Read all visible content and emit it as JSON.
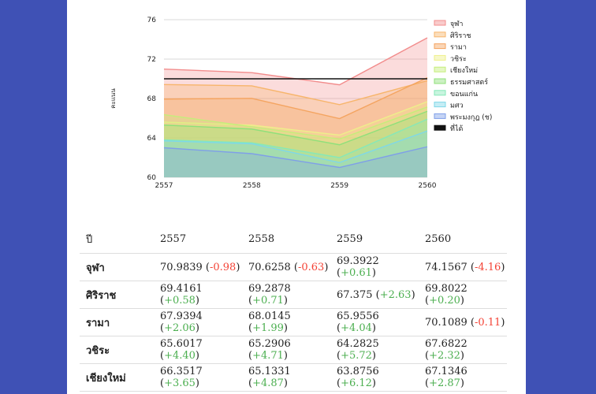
{
  "chart_data": {
    "type": "area",
    "x": [
      "2557",
      "2558",
      "2559",
      "2560"
    ],
    "ylim": [
      60,
      76
    ],
    "yticks": [
      60,
      64,
      68,
      72,
      76
    ],
    "ylabel": "คะแนน",
    "legend_position": "right",
    "series": [
      {
        "name": "จุฬา",
        "color": "#f28c8c",
        "values": [
          70.9839,
          70.6258,
          69.3922,
          74.1567
        ]
      },
      {
        "name": "ศิริราช",
        "color": "#f7b56b",
        "values": [
          69.4161,
          69.2878,
          67.375,
          69.8022
        ]
      },
      {
        "name": "รามา",
        "color": "#f4a460",
        "values": [
          67.9394,
          68.0145,
          65.9556,
          70.1089
        ]
      },
      {
        "name": "วชิระ",
        "color": "#eef08a",
        "values": [
          65.6017,
          65.2906,
          64.2825,
          67.6822
        ]
      },
      {
        "name": "เชียงใหม่",
        "color": "#c5ee7a",
        "values": [
          66.3517,
          65.1331,
          63.8756,
          67.1346
        ]
      },
      {
        "name": "ธรรมศาสตร์",
        "color": "#8fe07a",
        "values": [
          65.3,
          64.9,
          63.3,
          66.7
        ]
      },
      {
        "name": "ขอนแก่น",
        "color": "#86e8b8",
        "values": [
          63.8,
          63.5,
          62.0,
          65.9
        ]
      },
      {
        "name": "มศว",
        "color": "#7fd8e8",
        "values": [
          63.7,
          63.4,
          61.5,
          64.7
        ]
      },
      {
        "name": "พระมงกุฎ (ช)",
        "color": "#7f9fe8",
        "values": [
          63.0,
          62.4,
          61.0,
          63.1
        ]
      },
      {
        "name": "ที่ได้",
        "color": "#111111",
        "values": [
          70,
          70,
          70,
          70
        ]
      }
    ]
  },
  "table": {
    "header_label": "ปี",
    "years": [
      "2557",
      "2558",
      "2559",
      "2560"
    ],
    "rows": [
      {
        "name": "จุฬา",
        "cells": [
          {
            "value": "70.9839",
            "diff": "-0.98",
            "sign": "neg"
          },
          {
            "value": "70.6258",
            "diff": "-0.63",
            "sign": "neg"
          },
          {
            "value": "69.3922",
            "diff": "+0.61",
            "sign": "pos"
          },
          {
            "value": "74.1567",
            "diff": "-4.16",
            "sign": "neg"
          }
        ]
      },
      {
        "name": "ศิริราช",
        "cells": [
          {
            "value": "69.4161",
            "diff": "+0.58",
            "sign": "pos"
          },
          {
            "value": "69.2878",
            "diff": "+0.71",
            "sign": "pos"
          },
          {
            "value": "67.375",
            "diff": "+2.63",
            "sign": "pos"
          },
          {
            "value": "69.8022",
            "diff": "+0.20",
            "sign": "pos"
          }
        ]
      },
      {
        "name": "รามา",
        "cells": [
          {
            "value": "67.9394",
            "diff": "+2.06",
            "sign": "pos"
          },
          {
            "value": "68.0145",
            "diff": "+1.99",
            "sign": "pos"
          },
          {
            "value": "65.9556",
            "diff": "+4.04",
            "sign": "pos"
          },
          {
            "value": "70.1089",
            "diff": "-0.11",
            "sign": "neg"
          }
        ]
      },
      {
        "name": "วชิระ",
        "cells": [
          {
            "value": "65.6017",
            "diff": "+4.40",
            "sign": "pos"
          },
          {
            "value": "65.2906",
            "diff": "+4.71",
            "sign": "pos"
          },
          {
            "value": "64.2825",
            "diff": "+5.72",
            "sign": "pos"
          },
          {
            "value": "67.6822",
            "diff": "+2.32",
            "sign": "pos"
          }
        ]
      },
      {
        "name": "เชียงใหม่",
        "cells": [
          {
            "value": "66.3517",
            "diff": "+3.65",
            "sign": "pos"
          },
          {
            "value": "65.1331",
            "diff": "+4.87",
            "sign": "pos"
          },
          {
            "value": "63.8756",
            "diff": "+6.12",
            "sign": "pos"
          },
          {
            "value": "67.1346",
            "diff": "+2.87",
            "sign": "pos"
          }
        ]
      }
    ]
  }
}
